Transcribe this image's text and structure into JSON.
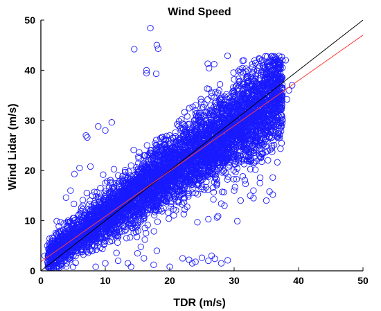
{
  "chart_data": {
    "type": "scatter",
    "title": "Wind Speed",
    "xlabel": "TDR (m/s)",
    "ylabel": "Wind Lidar (m/s)",
    "xlim": [
      0,
      50
    ],
    "ylim": [
      0,
      50
    ],
    "x_ticks": [
      "0",
      "10",
      "20",
      "30",
      "40",
      "50"
    ],
    "y_ticks": [
      "0",
      "10",
      "20",
      "30",
      "40",
      "50"
    ],
    "grid": false,
    "marker": "open-circle",
    "colors": {
      "points": "#1a1aff",
      "one_to_one_line": "#000000",
      "fit_line": "#ff3b3b"
    },
    "lines": [
      {
        "kind": "one-to-one",
        "x": [
          0,
          50
        ],
        "y": [
          0,
          50
        ]
      },
      {
        "kind": "linear-fit",
        "x": [
          0,
          50
        ],
        "y": [
          1.8,
          47
        ]
      }
    ],
    "series": [
      {
        "points": [
          [
            14.5,
            44.2
          ],
          [
            17.0,
            48.4
          ],
          [
            18.0,
            45.0
          ],
          [
            18.2,
            44.3
          ],
          [
            16.4,
            40.0
          ],
          [
            16.4,
            39.4
          ],
          [
            17.9,
            39.3
          ],
          [
            25.9,
            41.3
          ],
          [
            26.9,
            41.2
          ],
          [
            26.1,
            40.4
          ],
          [
            7.0,
            27.0
          ],
          [
            7.2,
            26.6
          ],
          [
            8.9,
            28.8
          ],
          [
            10.0,
            28.0
          ],
          [
            11.0,
            29.6
          ],
          [
            7.7,
            20.8
          ],
          [
            6.0,
            20.5
          ],
          [
            5.2,
            19.3
          ],
          [
            4.6,
            16.0
          ],
          [
            3.9,
            14.6
          ],
          [
            33.5,
            26.0
          ],
          [
            34.0,
            25.5
          ],
          [
            32.0,
            22.0
          ],
          [
            33.0,
            21.5
          ],
          [
            35.5,
            15.8
          ],
          [
            36.0,
            15.2
          ],
          [
            36.0,
            18.6
          ],
          [
            34.0,
            17.5
          ],
          [
            33.0,
            16.0
          ],
          [
            32.5,
            15.0
          ],
          [
            31.0,
            14.0
          ],
          [
            28.0,
            13.4
          ],
          [
            27.5,
            10.9
          ],
          [
            26.0,
            10.3
          ],
          [
            24.3,
            9.7
          ],
          [
            30.5,
            9.9
          ],
          [
            28.5,
            13.0
          ],
          [
            30.0,
            16.0
          ],
          [
            33.0,
            14.5
          ],
          [
            35.0,
            14.0
          ],
          [
            22.0,
            2.5
          ],
          [
            23.0,
            2.2
          ],
          [
            24.0,
            1.8
          ],
          [
            25.0,
            2.6
          ],
          [
            26.0,
            2.0
          ],
          [
            27.0,
            2.4
          ],
          [
            28.0,
            1.5
          ],
          [
            29.0,
            2.1
          ],
          [
            26.5,
            3.0
          ],
          [
            23.5,
            1.5
          ],
          [
            16.0,
            2.5
          ],
          [
            15.0,
            3.5
          ],
          [
            18.0,
            4.0
          ],
          [
            13.5,
            1.5
          ],
          [
            17.5,
            1.2
          ],
          [
            20.0,
            0.8
          ],
          [
            14.0,
            0.8
          ],
          [
            12.0,
            2.0
          ],
          [
            10.0,
            1.5
          ],
          [
            8.5,
            0.8
          ],
          [
            1.2,
            4.2
          ],
          [
            1.5,
            3.8
          ],
          [
            1.0,
            5.0
          ],
          [
            0.6,
            3.0
          ],
          [
            2.0,
            2.0
          ],
          [
            3.0,
            1.2
          ],
          [
            1.5,
            1.5
          ],
          [
            2.5,
            1.0
          ],
          [
            4.0,
            1.5
          ],
          [
            5.0,
            0.8
          ],
          [
            37.0,
            41.5
          ],
          [
            38.0,
            42.0
          ],
          [
            37.5,
            40.5
          ],
          [
            36.0,
            39.0
          ],
          [
            39.0,
            37.0
          ],
          [
            38.5,
            36.0
          ],
          [
            37.2,
            35.2
          ],
          [
            35.5,
            37.5
          ],
          [
            38.2,
            34.2
          ],
          [
            36.5,
            32.0
          ],
          [
            3.0,
            8.0
          ],
          [
            5.0,
            10.5
          ],
          [
            6.5,
            13.0
          ],
          [
            8.0,
            15.0
          ],
          [
            10.0,
            17.5
          ],
          [
            12.0,
            19.0
          ],
          [
            14.0,
            21.0
          ],
          [
            16.0,
            23.0
          ],
          [
            18.0,
            25.0
          ],
          [
            20.0,
            27.0
          ],
          [
            22.0,
            28.5
          ],
          [
            24.0,
            30.0
          ],
          [
            26.0,
            31.5
          ],
          [
            28.0,
            33.0
          ],
          [
            30.0,
            35.0
          ],
          [
            32.0,
            36.0
          ],
          [
            34.0,
            37.0
          ],
          [
            8.0,
            4.0
          ],
          [
            10.0,
            6.0
          ],
          [
            12.0,
            7.0
          ],
          [
            14.0,
            9.0
          ],
          [
            16.0,
            11.0
          ],
          [
            18.0,
            13.0
          ],
          [
            20.0,
            14.5
          ],
          [
            22.0,
            16.0
          ],
          [
            24.0,
            18.0
          ],
          [
            26.0,
            20.0
          ],
          [
            28.0,
            22.5
          ],
          [
            30.0,
            25.0
          ],
          [
            32.0,
            27.0
          ],
          [
            34.0,
            29.0
          ],
          [
            36.0,
            31.0
          ],
          [
            36.5,
            34.0
          ],
          [
            35.0,
            33.5
          ],
          [
            33.0,
            31.5
          ]
        ]
      }
    ]
  }
}
